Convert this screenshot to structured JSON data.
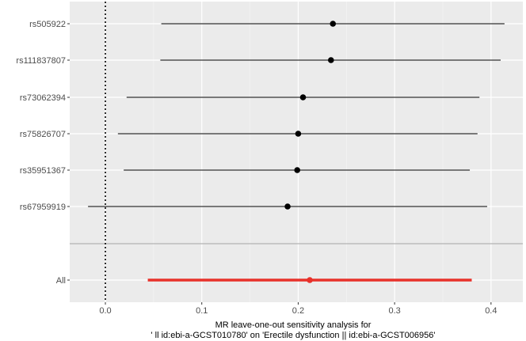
{
  "chart_data": {
    "type": "forest",
    "xlabel_line1": "MR leave-one-out sensitivity analysis for",
    "xlabel_line2": "' ll id:ebi-a-GCST010780' on 'Erectile dysfunction || id:ebi-a-GCST006956'",
    "xlim": [
      -0.037,
      0.433
    ],
    "xticks": [
      0.0,
      0.1,
      0.2,
      0.3,
      0.4
    ],
    "xtick_labels": [
      "0.0",
      "0.1",
      "0.2",
      "0.3",
      "0.4"
    ],
    "reference_line": 0.0,
    "snps": [
      {
        "label": "rs505922",
        "estimate": 0.236,
        "lower": 0.058,
        "upper": 0.414
      },
      {
        "label": "rs111837807",
        "estimate": 0.234,
        "lower": 0.057,
        "upper": 0.41
      },
      {
        "label": "rs73062394",
        "estimate": 0.205,
        "lower": 0.022,
        "upper": 0.388
      },
      {
        "label": "rs75826707",
        "estimate": 0.2,
        "lower": 0.013,
        "upper": 0.386
      },
      {
        "label": "rs35951367",
        "estimate": 0.199,
        "lower": 0.019,
        "upper": 0.378
      },
      {
        "label": "rs67959919",
        "estimate": 0.189,
        "lower": -0.018,
        "upper": 0.396
      }
    ],
    "overall": {
      "label": "All",
      "estimate": 0.212,
      "lower": 0.044,
      "upper": 0.38
    },
    "colors": {
      "panel": "#ebebeb",
      "grid_major": "#ffffff",
      "snp": "#000000",
      "overall": "#e8312a",
      "separator": "#b3b3b3"
    },
    "grid": true
  }
}
